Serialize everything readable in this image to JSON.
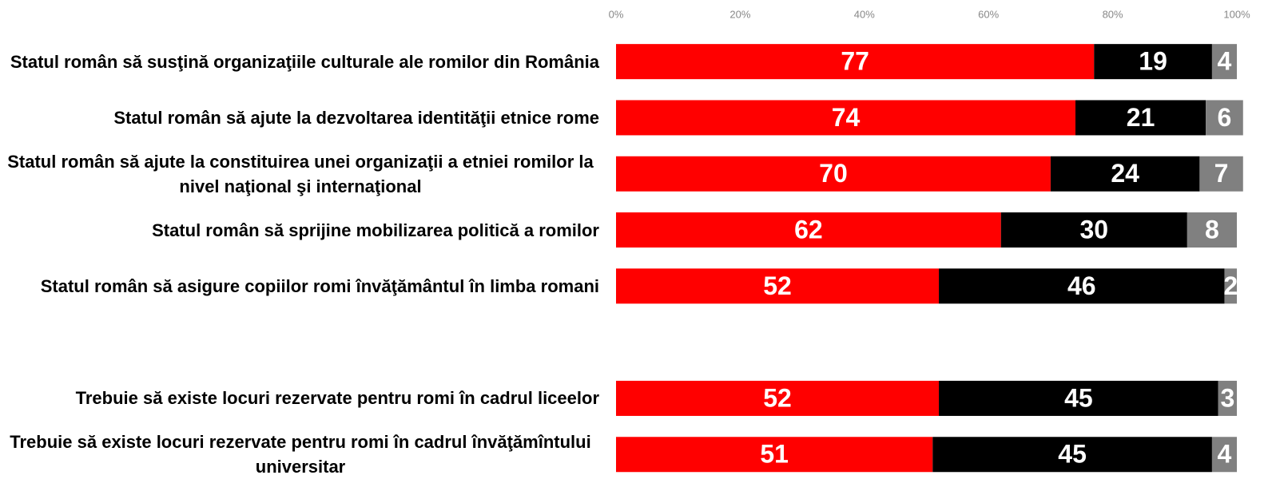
{
  "chart_data": {
    "type": "stacked_bar_horizontal",
    "categories": [
      "Statul român să susţină organizaţiile culturale ale romilor din România",
      "Statul român să ajute la dezvoltarea identităţii etnice rome",
      "Statul român să ajute la constituirea unei organizaţii a etniei romilor la nivel naţional şi internaţional",
      "Statul român să sprijine mobilizarea politică a romilor",
      "Statul român să asigure copiilor romi învăţământul în limba romani",
      null,
      "Trebuie să existe locuri rezervate pentru romi în cadrul liceelor",
      "Trebuie să existe locuri rezervate pentru romi în cadrul învăţămîntului universitar"
    ],
    "series": [
      {
        "color": "#ff0000",
        "values": [
          77,
          74,
          70,
          62,
          52,
          null,
          52,
          51
        ]
      },
      {
        "color": "#000000",
        "values": [
          19,
          21,
          24,
          30,
          46,
          null,
          45,
          45
        ]
      },
      {
        "color": "#808080",
        "values": [
          4,
          6,
          7,
          8,
          2,
          null,
          3,
          4
        ]
      }
    ],
    "xlim": [
      0,
      100
    ],
    "xticks": [
      {
        "value": 0,
        "label": "0%"
      },
      {
        "value": 20,
        "label": "20%"
      },
      {
        "value": 40,
        "label": "40%"
      },
      {
        "value": 60,
        "label": "60%"
      },
      {
        "value": 80,
        "label": "80%"
      },
      {
        "value": 100,
        "label": "100%"
      }
    ]
  }
}
